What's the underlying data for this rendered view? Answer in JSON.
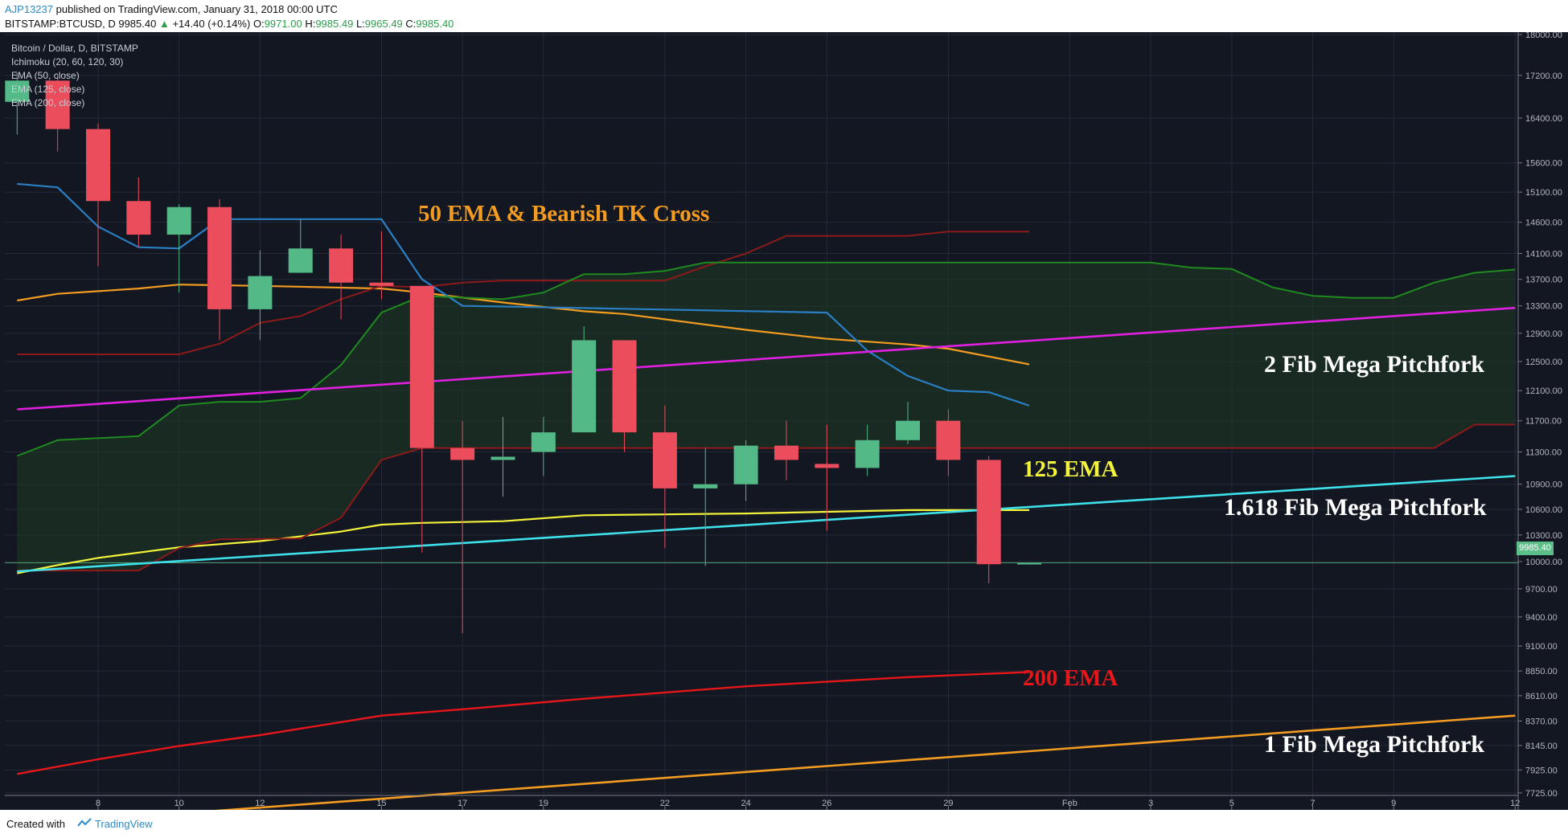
{
  "header": {
    "user": "AJP13237",
    "published": "published on TradingView.com, January 31, 2018 00:00 UTC",
    "symbol": "BITSTAMP:BTCUSD, D",
    "last": "9985.40",
    "change": "+14.40 (+0.14%)",
    "o_label": "O:",
    "o_value": "9971.00",
    "h_label": "H:",
    "h_value": "9985.49",
    "l_label": "L:",
    "l_value": "9965.49",
    "c_label": "C:",
    "c_value": "9985.40"
  },
  "legend": {
    "title": "Bitcoin / Dollar, D, BITSTAMP",
    "ichimoku": "Ichimoku (20, 60, 120, 30)",
    "ema50": "EMA (50, close)",
    "ema125": "EMA (125, close)",
    "ema200": "EMA (200, close)"
  },
  "annotations": {
    "ema50_tk": "50 EMA & Bearish TK Cross",
    "ema125": "125 EMA",
    "ema200": "200 EMA",
    "fib2": "2 Fib Mega Pitchfork",
    "fib1618": "1.618 Fib Mega Pitchfork",
    "fib1": "1 Fib Mega Pitchfork"
  },
  "price_tag": "9985.40",
  "footer": {
    "created_with": "Created with",
    "tradingview": "TradingView"
  },
  "colors": {
    "background": "#131722",
    "up": "#53b987",
    "down": "#eb4d5c",
    "ema50": "#f39c21",
    "ema125": "#f3f33a",
    "ema200": "#e6161a",
    "tenkan": "#2a7fc4",
    "kijun": "#8c1a1a",
    "span_a": "#1f8a1f",
    "span_b": "#8c1a1a",
    "fib2": "#e020e0",
    "fib1618": "#3ee0ea",
    "fib1": "#f39c21"
  },
  "chart_data": {
    "type": "candlestick",
    "title": "Bitcoin / Dollar, D, BITSTAMP",
    "y_scale": "log",
    "ylim": [
      7580,
      18050
    ],
    "y_ticks": [
      "18000.00",
      "17200.00",
      "16400.00",
      "15600.00",
      "15100.00",
      "14600.00",
      "14100.00",
      "13700.00",
      "13300.00",
      "12900.00",
      "12500.00",
      "12100.00",
      "11700.00",
      "11300.00",
      "10900.00",
      "10600.00",
      "10300.00",
      "10000.00",
      "9700.00",
      "9400.00",
      "9100.00",
      "8850.00",
      "8610.00",
      "8370.00",
      "8145.00",
      "7925.00",
      "7725.00"
    ],
    "x_ticks": [
      "8",
      "10",
      "12",
      "15",
      "17",
      "19",
      "22",
      "24",
      "26",
      "29",
      "Feb",
      "3",
      "5",
      "7",
      "9",
      "12"
    ],
    "candles": [
      {
        "date": "2018-01-06",
        "open": 16700,
        "high": 17250,
        "low": 16100,
        "close": 17100
      },
      {
        "date": "2018-01-07",
        "open": 17100,
        "high": 17200,
        "low": 15800,
        "close": 16200
      },
      {
        "date": "2018-01-08",
        "open": 16200,
        "high": 16300,
        "low": 13900,
        "close": 14950
      },
      {
        "date": "2018-01-09",
        "open": 14950,
        "high": 15350,
        "low": 14200,
        "close": 14400
      },
      {
        "date": "2018-01-10",
        "open": 14400,
        "high": 14900,
        "low": 13500,
        "close": 14850
      },
      {
        "date": "2018-01-11",
        "open": 14850,
        "high": 14980,
        "low": 12800,
        "close": 13250
      },
      {
        "date": "2018-01-12",
        "open": 13250,
        "high": 14150,
        "low": 12800,
        "close": 13750
      },
      {
        "date": "2018-01-13",
        "open": 13800,
        "high": 14650,
        "low": 13800,
        "close": 14180
      },
      {
        "date": "2018-01-14",
        "open": 14180,
        "high": 14400,
        "low": 13100,
        "close": 13650
      },
      {
        "date": "2018-01-15",
        "open": 13650,
        "high": 14450,
        "low": 13400,
        "close": 13600
      },
      {
        "date": "2018-01-16",
        "open": 13600,
        "high": 13600,
        "low": 10100,
        "close": 11350
      },
      {
        "date": "2018-01-17",
        "open": 11350,
        "high": 11700,
        "low": 9230,
        "close": 11200
      },
      {
        "date": "2018-01-18",
        "open": 11200,
        "high": 11750,
        "low": 10750,
        "close": 11240
      },
      {
        "date": "2018-01-19",
        "open": 11300,
        "high": 11750,
        "low": 11000,
        "close": 11550
      },
      {
        "date": "2018-01-20",
        "open": 11550,
        "high": 13000,
        "low": 11550,
        "close": 12800
      },
      {
        "date": "2018-01-21",
        "open": 12800,
        "high": 12800,
        "low": 11300,
        "close": 11550
      },
      {
        "date": "2018-01-22",
        "open": 11550,
        "high": 11900,
        "low": 10150,
        "close": 10850
      },
      {
        "date": "2018-01-23",
        "open": 10850,
        "high": 11350,
        "low": 9950,
        "close": 10900
      },
      {
        "date": "2018-01-24",
        "open": 10900,
        "high": 11450,
        "low": 10700,
        "close": 11380
      },
      {
        "date": "2018-01-25",
        "open": 11380,
        "high": 11700,
        "low": 10950,
        "close": 11200
      },
      {
        "date": "2018-01-26",
        "open": 11150,
        "high": 11650,
        "low": 10350,
        "close": 11100
      },
      {
        "date": "2018-01-27",
        "open": 11100,
        "high": 11650,
        "low": 11000,
        "close": 11450
      },
      {
        "date": "2018-01-28",
        "open": 11450,
        "high": 11950,
        "low": 11400,
        "close": 11700
      },
      {
        "date": "2018-01-29",
        "open": 11700,
        "high": 11850,
        "low": 11000,
        "close": 11200
      },
      {
        "date": "2018-01-30",
        "open": 11200,
        "high": 11250,
        "low": 9760,
        "close": 9970
      },
      {
        "date": "2018-01-31",
        "open": 9971,
        "high": 9985.49,
        "low": 9965.49,
        "close": 9985.4
      }
    ],
    "series": [
      {
        "name": "EMA (50, close)",
        "points": [
          [
            "2018-01-06",
            13380
          ],
          [
            "2018-01-07",
            13480
          ],
          [
            "2018-01-09",
            13560
          ],
          [
            "2018-01-10",
            13620
          ],
          [
            "2018-01-12",
            13600
          ],
          [
            "2018-01-15",
            13560
          ],
          [
            "2018-01-16",
            13500
          ],
          [
            "2018-01-18",
            13350
          ],
          [
            "2018-01-20",
            13220
          ],
          [
            "2018-01-21",
            13180
          ],
          [
            "2018-01-24",
            12950
          ],
          [
            "2018-01-26",
            12820
          ],
          [
            "2018-01-28",
            12740
          ],
          [
            "2018-01-29",
            12680
          ],
          [
            "2018-01-31",
            12460
          ]
        ]
      },
      {
        "name": "EMA (125, close)",
        "points": [
          [
            "2018-01-06",
            9870
          ],
          [
            "2018-01-07",
            9960
          ],
          [
            "2018-01-08",
            10040
          ],
          [
            "2018-01-10",
            10160
          ],
          [
            "2018-01-12",
            10230
          ],
          [
            "2018-01-14",
            10340
          ],
          [
            "2018-01-15",
            10420
          ],
          [
            "2018-01-16",
            10440
          ],
          [
            "2018-01-18",
            10460
          ],
          [
            "2018-01-20",
            10530
          ],
          [
            "2018-01-22",
            10540
          ],
          [
            "2018-01-24",
            10550
          ],
          [
            "2018-01-26",
            10570
          ],
          [
            "2018-01-28",
            10590
          ],
          [
            "2018-01-31",
            10590
          ]
        ]
      },
      {
        "name": "EMA (200, close)",
        "points": [
          [
            "2018-01-06",
            7890
          ],
          [
            "2018-01-08",
            8020
          ],
          [
            "2018-01-10",
            8140
          ],
          [
            "2018-01-12",
            8240
          ],
          [
            "2018-01-15",
            8420
          ],
          [
            "2018-01-17",
            8480
          ],
          [
            "2018-01-20",
            8580
          ],
          [
            "2018-01-24",
            8700
          ],
          [
            "2018-01-28",
            8790
          ],
          [
            "2018-01-31",
            8840
          ]
        ]
      },
      {
        "name": "Ichimoku Tenkan",
        "points": [
          [
            "2018-01-06",
            15240
          ],
          [
            "2018-01-07",
            15180
          ],
          [
            "2018-01-08",
            14530
          ],
          [
            "2018-01-09",
            14200
          ],
          [
            "2018-01-10",
            14180
          ],
          [
            "2018-01-11",
            14650
          ],
          [
            "2018-01-15",
            14650
          ],
          [
            "2018-01-16",
            13700
          ],
          [
            "2018-01-17",
            13300
          ],
          [
            "2018-01-18",
            13290
          ],
          [
            "2018-01-26",
            13200
          ],
          [
            "2018-01-27",
            12650
          ],
          [
            "2018-01-28",
            12300
          ],
          [
            "2018-01-29",
            12100
          ],
          [
            "2018-01-30",
            12080
          ],
          [
            "2018-01-31",
            11900
          ]
        ]
      },
      {
        "name": "Ichimoku Kijun",
        "points": [
          [
            "2018-01-06",
            12600
          ],
          [
            "2018-01-10",
            12600
          ],
          [
            "2018-01-11",
            12750
          ],
          [
            "2018-01-12",
            13050
          ],
          [
            "2018-01-13",
            13150
          ],
          [
            "2018-01-14",
            13400
          ],
          [
            "2018-01-15",
            13600
          ],
          [
            "2018-01-16",
            13580
          ],
          [
            "2018-01-17",
            13650
          ],
          [
            "2018-01-18",
            13680
          ],
          [
            "2018-01-22",
            13680
          ],
          [
            "2018-01-23",
            13900
          ],
          [
            "2018-01-24",
            14100
          ],
          [
            "2018-01-25",
            14380
          ],
          [
            "2018-01-28",
            14380
          ],
          [
            "2018-01-29",
            14450
          ],
          [
            "2018-01-31",
            14450
          ]
        ]
      },
      {
        "name": "Ichimoku Span A",
        "points": [
          [
            "2018-01-06",
            11250
          ],
          [
            "2018-01-07",
            11450
          ],
          [
            "2018-01-09",
            11500
          ],
          [
            "2018-01-10",
            11900
          ],
          [
            "2018-01-11",
            11950
          ],
          [
            "2018-01-12",
            11950
          ],
          [
            "2018-01-13",
            12000
          ],
          [
            "2018-01-14",
            12450
          ],
          [
            "2018-01-15",
            13200
          ],
          [
            "2018-01-16",
            13450
          ],
          [
            "2018-01-18",
            13400
          ],
          [
            "2018-01-19",
            13500
          ],
          [
            "2018-01-20",
            13780
          ],
          [
            "2018-01-21",
            13780
          ],
          [
            "2018-01-22",
            13830
          ],
          [
            "2018-01-23",
            13960
          ],
          [
            "2018-02-03",
            13960
          ],
          [
            "2018-02-04",
            13880
          ],
          [
            "2018-02-05",
            13860
          ],
          [
            "2018-02-06",
            13580
          ],
          [
            "2018-02-07",
            13450
          ],
          [
            "2018-02-08",
            13420
          ],
          [
            "2018-02-09",
            13420
          ],
          [
            "2018-02-10",
            13650
          ],
          [
            "2018-02-11",
            13800
          ],
          [
            "2018-02-12",
            13850
          ]
        ]
      },
      {
        "name": "Ichimoku Span B",
        "points": [
          [
            "2018-01-06",
            9900
          ],
          [
            "2018-01-09",
            9900
          ],
          [
            "2018-01-10",
            10150
          ],
          [
            "2018-01-11",
            10250
          ],
          [
            "2018-01-13",
            10260
          ],
          [
            "2018-01-14",
            10500
          ],
          [
            "2018-01-15",
            11200
          ],
          [
            "2018-01-16",
            11350
          ],
          [
            "2018-02-10",
            11350
          ],
          [
            "2018-02-11",
            11650
          ],
          [
            "2018-02-12",
            11650
          ]
        ]
      },
      {
        "name": "2 Fib Mega Pitchfork",
        "points": [
          [
            "2018-01-06",
            11850
          ],
          [
            "2018-02-12",
            13270
          ]
        ]
      },
      {
        "name": "1.618 Fib Mega Pitchfork",
        "points": [
          [
            "2018-01-06",
            9890
          ],
          [
            "2018-02-12",
            11000
          ]
        ]
      },
      {
        "name": "1 Fib Mega Pitchfork",
        "points": [
          [
            "2018-01-06",
            7450
          ],
          [
            "2018-02-12",
            8420
          ]
        ]
      }
    ],
    "last_price": 9985.4
  }
}
